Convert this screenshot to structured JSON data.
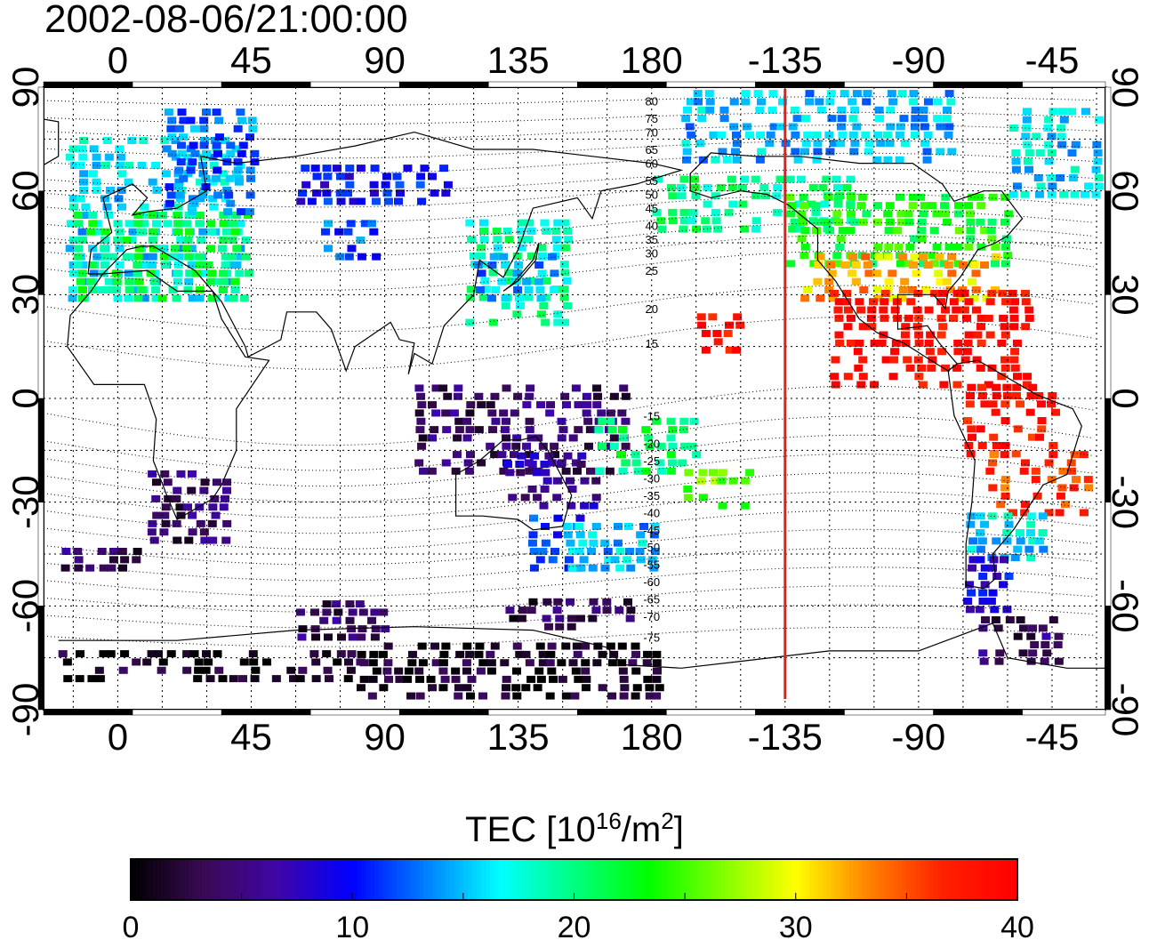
{
  "timestamp": "2002-08-06/21:00:00",
  "map": {
    "lon_tick_labels": [
      "0",
      "45",
      "90",
      "135",
      "180",
      "-135",
      "-90",
      "-45"
    ],
    "lat_tick_labels": [
      "90",
      "60",
      "30",
      "0",
      "-30",
      "-60",
      "-90"
    ],
    "lon_ticks_deg": [
      0,
      45,
      90,
      135,
      180,
      225,
      270,
      315
    ],
    "lat_ticks_deg": [
      90,
      60,
      30,
      0,
      -30,
      -60,
      -90
    ],
    "lon_range_deg": [
      -25,
      333
    ],
    "lat_range_deg": [
      -90,
      90
    ],
    "grid": "dotted 15°",
    "terminator_lon_deg": 225,
    "magnetic_lat_labels": [
      "80",
      "75",
      "70",
      "65",
      "60",
      "55",
      "50",
      "45",
      "40",
      "35",
      "30",
      "25",
      "20",
      "15",
      "-15",
      "-20",
      "-25",
      "-30",
      "-35",
      "-40",
      "-45",
      "-50",
      "-55",
      "-60",
      "-65",
      "-70",
      "-75"
    ],
    "magnetic_lat_labels_lat_deg": [
      86,
      81,
      77,
      72,
      68,
      63,
      59,
      55,
      50,
      46,
      42,
      37,
      26,
      16,
      -5,
      -13,
      -18,
      -23,
      -28,
      -33,
      -38,
      -43,
      -48,
      -53,
      -58,
      -63,
      -69
    ]
  },
  "colorbar": {
    "title": "TEC  [10",
    "title_exp": "16",
    "title_unit": "/m",
    "title_unit_exp": "2",
    "title_close": "]",
    "min": 0,
    "max": 40,
    "tick_labels": [
      "0",
      "10",
      "20",
      "30",
      "40"
    ],
    "colors": [
      "#000000",
      "#3a0a55",
      "#3f05a8",
      "#0000ff",
      "#0080ff",
      "#00ffff",
      "#00ff80",
      "#00ff00",
      "#80ff00",
      "#ffff00",
      "#ff8000",
      "#ff2000",
      "#ff0000"
    ]
  },
  "tec_regions": [
    {
      "lon": [
        -18,
        38
      ],
      "lat": [
        30,
        78
      ],
      "tec": 16
    },
    {
      "lon": [
        -15,
        42
      ],
      "lat": [
        30,
        55
      ],
      "tec": 21
    },
    {
      "lon": [
        15,
        45
      ],
      "lat": [
        55,
        85
      ],
      "tec": 13
    },
    {
      "lon": [
        68,
        85
      ],
      "lat": [
        42,
        52
      ],
      "tec": 12
    },
    {
      "lon": [
        60,
        110
      ],
      "lat": [
        58,
        68
      ],
      "tec": 10
    },
    {
      "lon": [
        117,
        150
      ],
      "lat": [
        23,
        52
      ],
      "tec": 19
    },
    {
      "lon": [
        120,
        147
      ],
      "lat": [
        30,
        42
      ],
      "tec": 14
    },
    {
      "lon": [
        100,
        170
      ],
      "lat": [
        -20,
        5
      ],
      "tec": 4
    },
    {
      "lon": [
        130,
        160
      ],
      "lat": [
        -30,
        -15
      ],
      "tec": 6
    },
    {
      "lon": [
        137,
        155
      ],
      "lat": [
        -48,
        -32
      ],
      "tec": 11
    },
    {
      "lon": [
        150,
        180
      ],
      "lat": [
        -48,
        -36
      ],
      "tec": 15
    },
    {
      "lon": [
        10,
        35
      ],
      "lat": [
        -40,
        -20
      ],
      "tec": 4
    },
    {
      "lon": [
        -20,
        5
      ],
      "lat": [
        -48,
        -42
      ],
      "tec": 4
    },
    {
      "lon": [
        60,
        90
      ],
      "lat": [
        -68,
        -58
      ],
      "tec": 4
    },
    {
      "lon": [
        130,
        170
      ],
      "lat": [
        -65,
        -56
      ],
      "tec": 3
    },
    {
      "lon": [
        -20,
        80
      ],
      "lat": [
        -80,
        -72
      ],
      "tec": 1
    },
    {
      "lon": [
        80,
        180
      ],
      "lat": [
        -85,
        -70
      ],
      "tec": 1
    },
    {
      "lon": [
        160,
        195
      ],
      "lat": [
        -20,
        -5
      ],
      "tec": 21
    },
    {
      "lon": [
        190,
        210
      ],
      "lat": [
        -30,
        -20
      ],
      "tec": 26
    },
    {
      "lon": [
        195,
        210
      ],
      "lat": [
        15,
        25
      ],
      "tec": 39
    },
    {
      "lon": [
        180,
        245
      ],
      "lat": [
        50,
        65
      ],
      "tec": 20
    },
    {
      "lon": [
        190,
        280
      ],
      "lat": [
        70,
        90
      ],
      "tec": 15
    },
    {
      "lon": [
        225,
        300
      ],
      "lat": [
        40,
        60
      ],
      "tec": 23
    },
    {
      "lon": [
        230,
        295
      ],
      "lat": [
        30,
        42
      ],
      "tec": 32
    },
    {
      "lon": [
        240,
        305
      ],
      "lat": [
        5,
        32
      ],
      "tec": 39
    },
    {
      "lon": [
        285,
        315
      ],
      "lat": [
        -15,
        5
      ],
      "tec": 38
    },
    {
      "lon": [
        292,
        325
      ],
      "lat": [
        -32,
        -15
      ],
      "tec": 36
    },
    {
      "lon": [
        285,
        310
      ],
      "lat": [
        -45,
        -32
      ],
      "tec": 16
    },
    {
      "lon": [
        285,
        300
      ],
      "lat": [
        -60,
        -45
      ],
      "tec": 9
    },
    {
      "lon": [
        290,
        315
      ],
      "lat": [
        -75,
        -62
      ],
      "tec": 4
    },
    {
      "lon": [
        300,
        330
      ],
      "lat": [
        60,
        85
      ],
      "tec": 16
    }
  ]
}
